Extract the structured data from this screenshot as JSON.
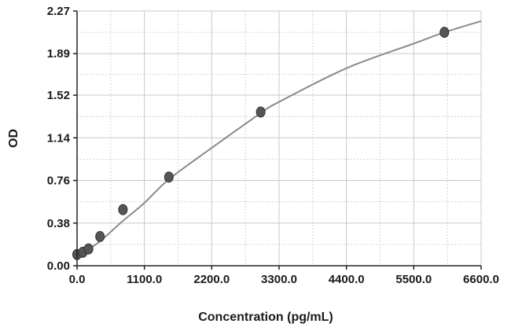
{
  "chart_data": {
    "type": "scatter",
    "title": "",
    "xlabel": "Concentration (pg/mL)",
    "ylabel": "OD",
    "xlim": [
      0,
      6600
    ],
    "ylim": [
      0,
      2.27
    ],
    "x_ticks": [
      0,
      1100,
      2200,
      3300,
      4400,
      5500,
      6600
    ],
    "x_tick_labels": [
      "0.0",
      "1100.0",
      "2200.0",
      "3300.0",
      "4400.0",
      "5500.0",
      "6600.0"
    ],
    "y_ticks": [
      0,
      0.38,
      0.76,
      1.14,
      1.52,
      1.89,
      2.27
    ],
    "y_tick_labels": [
      "0.00",
      "0.38",
      "0.76",
      "1.14",
      "1.52",
      "1.89",
      "2.27"
    ],
    "grid": true,
    "series": [
      {
        "points": [
          {
            "x": 0,
            "y": 0.1
          },
          {
            "x": 94,
            "y": 0.12
          },
          {
            "x": 188,
            "y": 0.15
          },
          {
            "x": 375,
            "y": 0.26
          },
          {
            "x": 750,
            "y": 0.5
          },
          {
            "x": 1500,
            "y": 0.79
          },
          {
            "x": 3000,
            "y": 1.37
          },
          {
            "x": 6000,
            "y": 2.08
          }
        ],
        "color": "#555555"
      }
    ],
    "fit_curve": {
      "points": [
        {
          "x": 0,
          "y": 0.09
        },
        {
          "x": 200,
          "y": 0.15
        },
        {
          "x": 400,
          "y": 0.23
        },
        {
          "x": 750,
          "y": 0.4
        },
        {
          "x": 1100,
          "y": 0.56
        },
        {
          "x": 1500,
          "y": 0.77
        },
        {
          "x": 2200,
          "y": 1.05
        },
        {
          "x": 3000,
          "y": 1.36
        },
        {
          "x": 3300,
          "y": 1.46
        },
        {
          "x": 4400,
          "y": 1.76
        },
        {
          "x": 5500,
          "y": 1.98
        },
        {
          "x": 6000,
          "y": 2.08
        },
        {
          "x": 6600,
          "y": 2.18
        }
      ],
      "color": "#8a8a8a"
    },
    "colors": {
      "grid": "#c8c8c8",
      "axis": "#222222",
      "marker": "#555555",
      "marker_edge": "#333333"
    }
  }
}
